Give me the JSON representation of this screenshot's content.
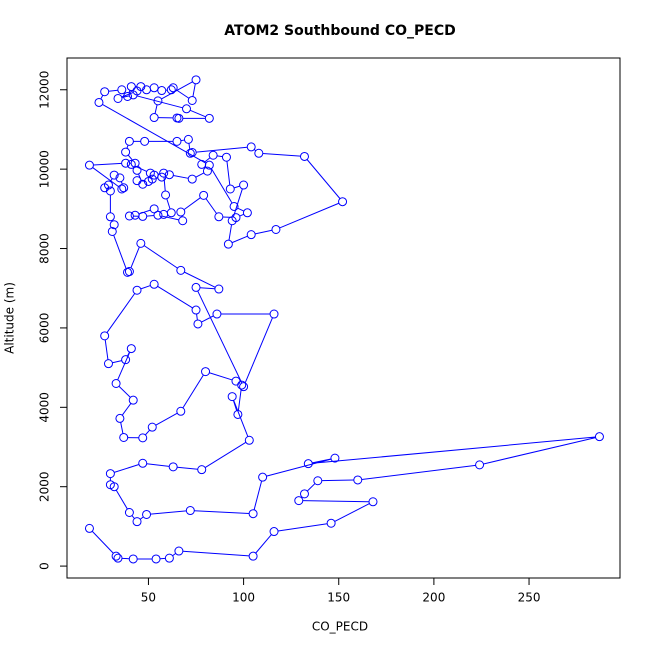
{
  "chart_data": {
    "type": "line",
    "title": "ATOM2 Southbound CO_PECD",
    "xlabel": "CO_PECD",
    "ylabel": "Altitude (m)",
    "color": "#0000ff",
    "markers": true,
    "xlim": [
      7.2,
      297.8
    ],
    "ylim": [
      -300,
      12800
    ],
    "xticks": [
      50,
      100,
      150,
      200,
      250
    ],
    "yticks": [
      0,
      2000,
      4000,
      6000,
      8000,
      10000,
      12000
    ],
    "x": [
      19,
      33,
      34,
      42,
      54,
      61,
      66,
      105,
      116,
      146,
      168,
      129,
      132,
      139,
      160,
      224,
      287,
      134,
      148,
      110,
      105,
      72,
      49,
      44,
      40,
      32,
      30,
      30,
      47,
      63,
      78,
      103,
      94,
      97,
      99,
      96,
      80,
      67,
      52,
      47,
      37,
      35,
      42,
      33,
      41,
      38,
      29,
      27,
      44,
      53,
      75,
      76,
      86,
      116,
      100,
      75,
      87,
      67,
      46,
      40,
      39,
      31,
      32,
      30,
      30,
      27,
      29,
      32,
      35,
      37,
      36,
      19,
      38,
      43,
      38,
      40,
      48,
      65,
      71,
      72,
      73,
      104,
      108,
      132,
      152,
      117,
      104,
      92,
      94,
      100,
      93,
      91,
      84,
      78,
      81,
      73,
      61,
      57,
      52,
      50,
      44,
      47,
      44,
      41,
      51,
      53,
      58,
      59,
      62,
      58,
      53,
      43,
      40,
      47,
      55,
      68,
      67,
      79,
      87,
      96,
      102,
      95,
      82,
      24,
      27,
      36,
      39,
      41,
      46,
      49,
      53,
      57,
      62,
      63,
      73,
      75,
      55,
      53,
      65,
      66,
      82,
      70,
      42,
      34,
      44
    ],
    "values": [
      950,
      250,
      200,
      180,
      180,
      200,
      380,
      250,
      870,
      1080,
      1620,
      1650,
      1820,
      2150,
      2170,
      2550,
      3260,
      2580,
      2720,
      2240,
      1320,
      1400,
      1300,
      1120,
      1350,
      2000,
      2050,
      2330,
      2590,
      2500,
      2430,
      3170,
      4270,
      3820,
      4560,
      4660,
      4900,
      3900,
      3500,
      3230,
      3240,
      3720,
      4180,
      4600,
      5480,
      5200,
      5100,
      5800,
      6950,
      7100,
      6450,
      6100,
      6350,
      6350,
      4520,
      7020,
      6980,
      7450,
      8130,
      7420,
      7400,
      8430,
      8600,
      8800,
      9450,
      9530,
      9600,
      9850,
      9780,
      9530,
      9500,
      10100,
      10150,
      10150,
      10430,
      10700,
      10700,
      10700,
      10750,
      10400,
      10420,
      10560,
      10400,
      10320,
      9180,
      8480,
      8350,
      8110,
      8700,
      9600,
      9500,
      10300,
      10350,
      10120,
      9950,
      9750,
      9860,
      9800,
      9750,
      9690,
      9710,
      9620,
      9970,
      10120,
      9900,
      9850,
      9900,
      9350,
      8900,
      8860,
      9000,
      8840,
      8820,
      8810,
      8840,
      8700,
      8920,
      9340,
      8800,
      8780,
      8900,
      9060,
      10100,
      11680,
      11950,
      12000,
      11830,
      12080,
      12080,
      12000,
      12050,
      11980,
      12000,
      12050,
      11730,
      12250,
      11720,
      11300,
      11290,
      11280,
      11280,
      11520,
      11870,
      11780,
      11970
    ]
  }
}
